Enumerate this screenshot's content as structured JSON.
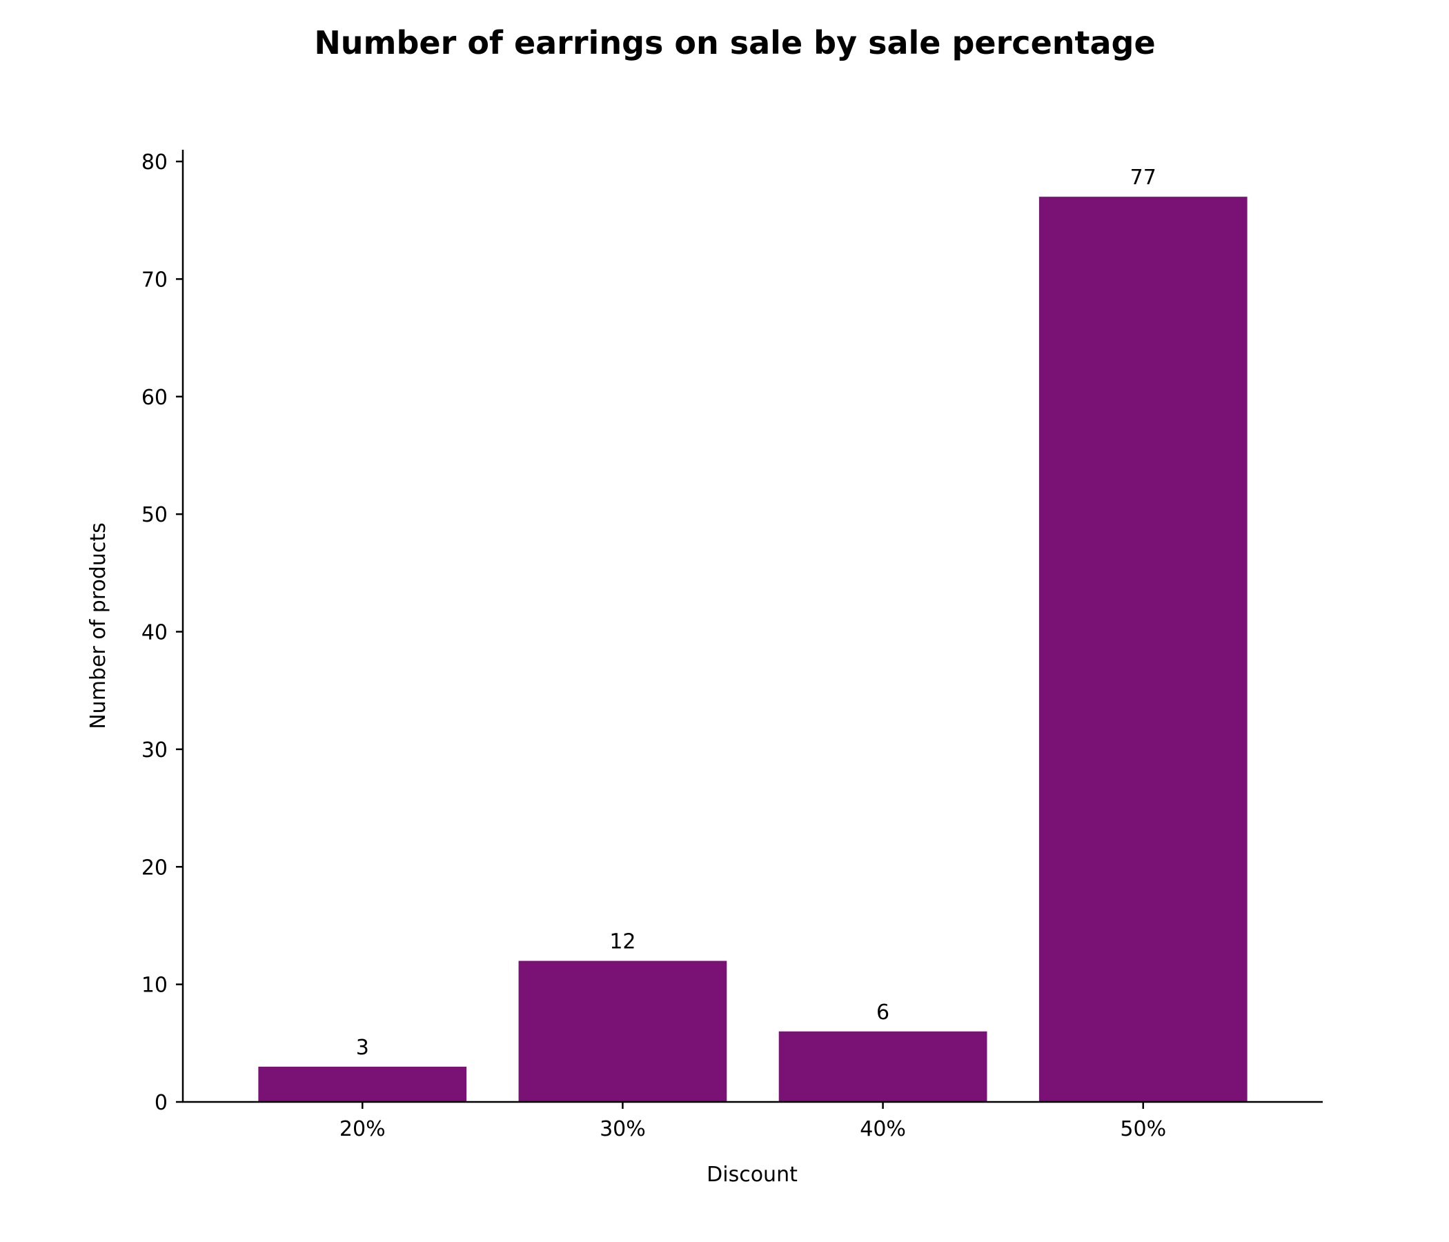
{
  "chart_data": {
    "type": "bar",
    "title": "Number of earrings on sale by sale percentage",
    "xlabel": "Discount",
    "ylabel": "Number of products",
    "categories": [
      "20%",
      "30%",
      "40%",
      "50%"
    ],
    "values": [
      3,
      12,
      6,
      77
    ],
    "data_labels": [
      "3",
      "12",
      "6",
      "77"
    ],
    "ylim": [
      0,
      81
    ],
    "yticks": [
      0,
      10,
      20,
      30,
      40,
      50,
      60,
      70,
      80
    ],
    "grid": false,
    "legend": "none",
    "bar_color": "#7a1275"
  }
}
